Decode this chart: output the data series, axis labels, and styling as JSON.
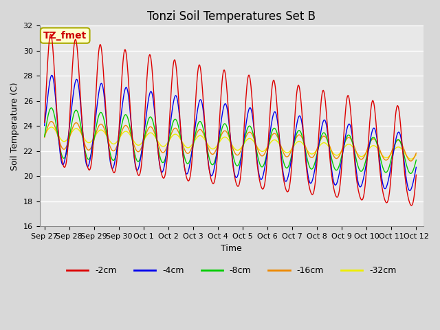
{
  "title": "Tonzi Soil Temperatures Set B",
  "xlabel": "Time",
  "ylabel": "Soil Temperature (C)",
  "ylim": [
    16,
    32
  ],
  "x_tick_labels": [
    "Sep 27",
    "Sep 28",
    "Sep 29",
    "Sep 30",
    "Oct 1",
    "Oct 2",
    "Oct 3",
    "Oct 4",
    "Oct 5",
    "Oct 6",
    "Oct 7",
    "Oct 8",
    "Oct 9",
    "Oct 10",
    "Oct 11",
    "Oct 12"
  ],
  "x_tick_positions": [
    0,
    1,
    2,
    3,
    4,
    5,
    6,
    7,
    8,
    9,
    10,
    11,
    12,
    13,
    14,
    15
  ],
  "colors": {
    "-2cm": "#dd0000",
    "-4cm": "#0000ee",
    "-8cm": "#00cc00",
    "-16cm": "#ee8800",
    "-32cm": "#eeee00"
  },
  "annotation_text": "TZ_fmet",
  "annotation_color": "#cc0000",
  "annotation_bg": "#ffffcc",
  "annotation_border": "#aaaa00",
  "background_color": "#e8e8e8",
  "grid_color": "#ffffff",
  "title_fontsize": 12,
  "axis_label_fontsize": 9,
  "tick_fontsize": 8,
  "legend_fontsize": 9,
  "figsize": [
    6.4,
    4.8
  ],
  "dpi": 100
}
